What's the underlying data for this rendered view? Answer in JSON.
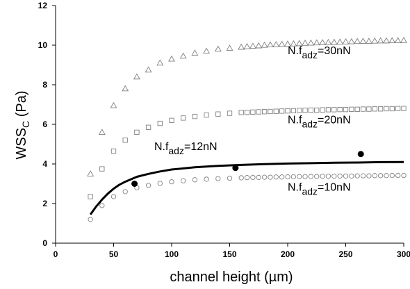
{
  "chart_data": {
    "type": "scatter",
    "title": "",
    "xlabel": "channel height (µm)",
    "ylabel_main": "WSS",
    "ylabel_sub": "C",
    "ylabel_unit": " (Pa)",
    "xlim": [
      0,
      300
    ],
    "ylim": [
      0,
      12
    ],
    "xticks": [
      0,
      50,
      100,
      150,
      200,
      250,
      300
    ],
    "yticks": [
      0,
      2,
      4,
      6,
      8,
      10,
      12
    ],
    "grid": false,
    "colors": {
      "axis": "#000000",
      "markers_open": "#7f7f7f",
      "line": "#000000",
      "markers_filled": "#000000"
    },
    "series": [
      {
        "kind": "triangle",
        "values": [
          [
            30,
            3.5
          ],
          [
            40,
            5.6
          ],
          [
            50,
            6.95
          ],
          [
            60,
            7.8
          ],
          [
            70,
            8.4
          ],
          [
            80,
            8.75
          ],
          [
            90,
            9.1
          ],
          [
            100,
            9.3
          ],
          [
            110,
            9.45
          ],
          [
            120,
            9.6
          ],
          [
            130,
            9.7
          ],
          [
            140,
            9.8
          ],
          [
            150,
            9.85
          ],
          [
            160,
            9.9
          ],
          [
            165,
            9.93
          ],
          [
            170,
            9.95
          ],
          [
            175,
            9.97
          ],
          [
            180,
            10.0
          ],
          [
            185,
            10.02
          ],
          [
            190,
            10.03
          ],
          [
            195,
            10.05
          ],
          [
            200,
            10.06
          ],
          [
            205,
            10.07
          ],
          [
            210,
            10.08
          ],
          [
            215,
            10.1
          ],
          [
            220,
            10.11
          ],
          [
            225,
            10.12
          ],
          [
            230,
            10.13
          ],
          [
            235,
            10.14
          ],
          [
            240,
            10.15
          ],
          [
            245,
            10.16
          ],
          [
            250,
            10.17
          ],
          [
            255,
            10.18
          ],
          [
            260,
            10.19
          ],
          [
            265,
            10.2
          ],
          [
            270,
            10.2
          ],
          [
            275,
            10.21
          ],
          [
            280,
            10.22
          ],
          [
            285,
            10.22
          ],
          [
            290,
            10.23
          ],
          [
            295,
            10.23
          ],
          [
            300,
            10.24
          ]
        ]
      },
      {
        "kind": "square",
        "values": [
          [
            30,
            2.35
          ],
          [
            40,
            3.75
          ],
          [
            50,
            4.65
          ],
          [
            60,
            5.2
          ],
          [
            70,
            5.6
          ],
          [
            80,
            5.85
          ],
          [
            90,
            6.05
          ],
          [
            100,
            6.2
          ],
          [
            110,
            6.32
          ],
          [
            120,
            6.4
          ],
          [
            130,
            6.47
          ],
          [
            140,
            6.52
          ],
          [
            150,
            6.56
          ],
          [
            160,
            6.6
          ],
          [
            165,
            6.61
          ],
          [
            170,
            6.62
          ],
          [
            175,
            6.63
          ],
          [
            180,
            6.64
          ],
          [
            185,
            6.65
          ],
          [
            190,
            6.66
          ],
          [
            195,
            6.67
          ],
          [
            200,
            6.68
          ],
          [
            205,
            6.69
          ],
          [
            210,
            6.7
          ],
          [
            215,
            6.71
          ],
          [
            220,
            6.72
          ],
          [
            225,
            6.72
          ],
          [
            230,
            6.73
          ],
          [
            235,
            6.74
          ],
          [
            240,
            6.74
          ],
          [
            245,
            6.75
          ],
          [
            250,
            6.75
          ],
          [
            255,
            6.76
          ],
          [
            260,
            6.76
          ],
          [
            265,
            6.77
          ],
          [
            270,
            6.77
          ],
          [
            275,
            6.78
          ],
          [
            280,
            6.78
          ],
          [
            285,
            6.79
          ],
          [
            290,
            6.79
          ],
          [
            295,
            6.8
          ],
          [
            300,
            6.8
          ]
        ]
      },
      {
        "kind": "circle",
        "values": [
          [
            30,
            1.2
          ],
          [
            40,
            1.9
          ],
          [
            50,
            2.35
          ],
          [
            60,
            2.6
          ],
          [
            70,
            2.8
          ],
          [
            80,
            2.92
          ],
          [
            90,
            3.02
          ],
          [
            100,
            3.1
          ],
          [
            110,
            3.15
          ],
          [
            120,
            3.2
          ],
          [
            130,
            3.23
          ],
          [
            140,
            3.26
          ],
          [
            150,
            3.28
          ],
          [
            160,
            3.3
          ],
          [
            165,
            3.31
          ],
          [
            170,
            3.32
          ],
          [
            175,
            3.32
          ],
          [
            180,
            3.33
          ],
          [
            185,
            3.33
          ],
          [
            190,
            3.34
          ],
          [
            195,
            3.34
          ],
          [
            200,
            3.35
          ],
          [
            205,
            3.35
          ],
          [
            210,
            3.36
          ],
          [
            215,
            3.36
          ],
          [
            220,
            3.37
          ],
          [
            225,
            3.37
          ],
          [
            230,
            3.38
          ],
          [
            235,
            3.38
          ],
          [
            240,
            3.38
          ],
          [
            245,
            3.39
          ],
          [
            250,
            3.39
          ],
          [
            255,
            3.39
          ],
          [
            260,
            3.4
          ],
          [
            265,
            3.4
          ],
          [
            270,
            3.4
          ],
          [
            275,
            3.41
          ],
          [
            280,
            3.41
          ],
          [
            285,
            3.41
          ],
          [
            290,
            3.42
          ],
          [
            295,
            3.42
          ],
          [
            300,
            3.42
          ]
        ]
      },
      {
        "kind": "line",
        "values": [
          [
            30,
            1.45
          ],
          [
            35,
            1.85
          ],
          [
            40,
            2.2
          ],
          [
            45,
            2.5
          ],
          [
            50,
            2.75
          ],
          [
            55,
            2.95
          ],
          [
            60,
            3.1
          ],
          [
            70,
            3.35
          ],
          [
            80,
            3.5
          ],
          [
            90,
            3.62
          ],
          [
            100,
            3.72
          ],
          [
            120,
            3.83
          ],
          [
            140,
            3.9
          ],
          [
            160,
            3.95
          ],
          [
            180,
            3.99
          ],
          [
            200,
            4.02
          ],
          [
            220,
            4.04
          ],
          [
            240,
            4.06
          ],
          [
            260,
            4.07
          ],
          [
            280,
            4.09
          ],
          [
            300,
            4.1
          ]
        ]
      },
      {
        "kind": "filled-circle",
        "values": [
          [
            68,
            3.0
          ],
          [
            155,
            3.8
          ],
          [
            263,
            4.5
          ]
        ]
      }
    ],
    "annotations": [
      {
        "id": "annot-30",
        "prefix": "N.f",
        "sub": "adz",
        "suffix": "=30nN",
        "x": 200,
        "y": 9.55
      },
      {
        "id": "annot-20",
        "prefix": "N.f",
        "sub": "adz",
        "suffix": "=20nN",
        "x": 200,
        "y": 6.05
      },
      {
        "id": "annot-12",
        "prefix": "N.f",
        "sub": "adz",
        "suffix": "=12nN",
        "x": 85,
        "y": 4.7
      },
      {
        "id": "annot-10",
        "prefix": "N.f",
        "sub": "adz",
        "suffix": "=10nN",
        "x": 200,
        "y": 2.65
      }
    ]
  }
}
